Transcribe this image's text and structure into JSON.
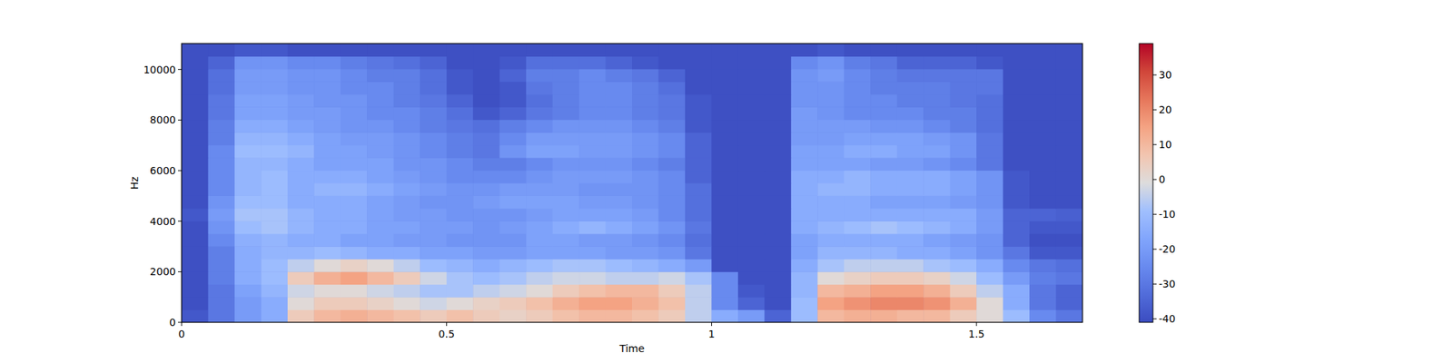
{
  "chart_data": {
    "type": "heatmap",
    "x_label": "Time",
    "y_label": "Hz",
    "xlim": [
      0,
      1.7
    ],
    "ylim": [
      0,
      11025
    ],
    "xticks": [
      0,
      0.5,
      1,
      1.5
    ],
    "yticks": [
      0,
      2000,
      4000,
      6000,
      8000,
      10000
    ],
    "color_range": [
      -41,
      39
    ],
    "color_ticks": [
      -40,
      -30,
      -20,
      -10,
      0,
      10,
      20,
      30
    ],
    "cells": [
      [
        -38,
        -30,
        -20,
        -15,
        5,
        10,
        12,
        10,
        8,
        5,
        8,
        5,
        3,
        5,
        8,
        10,
        10,
        8,
        5,
        -5,
        -15,
        -20,
        -35,
        -10,
        10,
        12,
        12,
        10,
        10,
        5,
        0,
        -10,
        -25,
        -30
      ],
      [
        -40,
        -30,
        -20,
        -15,
        0,
        5,
        5,
        3,
        0,
        -3,
        0,
        3,
        5,
        8,
        12,
        15,
        15,
        12,
        8,
        -5,
        -25,
        -35,
        -40,
        -10,
        15,
        18,
        20,
        20,
        18,
        12,
        0,
        -15,
        -30,
        -35
      ],
      [
        -40,
        -30,
        -18,
        -12,
        -3,
        0,
        0,
        -3,
        -5,
        -8,
        -8,
        -5,
        -3,
        0,
        5,
        8,
        10,
        10,
        5,
        -5,
        -25,
        -38,
        -40,
        -12,
        10,
        12,
        15,
        15,
        12,
        5,
        -5,
        -15,
        -30,
        -35
      ],
      [
        -40,
        -28,
        -15,
        -10,
        5,
        12,
        15,
        10,
        5,
        -3,
        -8,
        -10,
        -8,
        -5,
        -3,
        -3,
        -5,
        -5,
        -3,
        -8,
        -25,
        -40,
        -40,
        -12,
        0,
        3,
        5,
        5,
        3,
        -3,
        -10,
        -20,
        -28,
        -30
      ],
      [
        -40,
        -28,
        -15,
        -10,
        -5,
        0,
        3,
        0,
        -5,
        -10,
        -12,
        -15,
        -12,
        -10,
        -8,
        -8,
        -10,
        -12,
        -15,
        -20,
        -40,
        -40,
        -40,
        -15,
        -8,
        -5,
        -5,
        -5,
        -8,
        -10,
        -15,
        -25,
        -30,
        -32
      ],
      [
        -40,
        -28,
        -15,
        -12,
        -12,
        -10,
        -12,
        -15,
        -15,
        -18,
        -18,
        -20,
        -20,
        -18,
        -18,
        -18,
        -20,
        -20,
        -22,
        -30,
        -40,
        -40,
        -40,
        -18,
        -12,
        -12,
        -12,
        -15,
        -15,
        -18,
        -22,
        -30,
        -38,
        -38
      ],
      [
        -40,
        -25,
        -14,
        -12,
        -15,
        -15,
        -18,
        -18,
        -20,
        -20,
        -22,
        -22,
        -22,
        -18,
        -18,
        -20,
        -20,
        -22,
        -25,
        -32,
        -40,
        -40,
        -40,
        -18,
        -15,
        -15,
        -15,
        -15,
        -18,
        -20,
        -22,
        -35,
        -40,
        -40
      ],
      [
        -40,
        -22,
        -10,
        -8,
        -12,
        -15,
        -15,
        -18,
        -18,
        -20,
        -20,
        -22,
        -20,
        -18,
        -15,
        -12,
        -15,
        -18,
        -22,
        -30,
        -40,
        -40,
        -40,
        -15,
        -12,
        -10,
        -8,
        -10,
        -12,
        -15,
        -20,
        -35,
        -38,
        -38
      ],
      [
        -38,
        -20,
        -8,
        -8,
        -12,
        -15,
        -15,
        -18,
        -20,
        -20,
        -22,
        -22,
        -22,
        -20,
        -18,
        -18,
        -18,
        -20,
        -25,
        -32,
        -40,
        -40,
        -40,
        -15,
        -15,
        -15,
        -15,
        -15,
        -15,
        -15,
        -20,
        -35,
        -35,
        -36
      ],
      [
        -40,
        -22,
        -10,
        -10,
        -15,
        -15,
        -15,
        -18,
        -20,
        -22,
        -22,
        -20,
        -18,
        -18,
        -18,
        -20,
        -20,
        -22,
        -25,
        -32,
        -40,
        -40,
        -40,
        -15,
        -15,
        -15,
        -18,
        -18,
        -18,
        -20,
        -22,
        -38,
        -40,
        -40
      ],
      [
        -40,
        -25,
        -12,
        -10,
        -15,
        -12,
        -12,
        -15,
        -18,
        -20,
        -22,
        -22,
        -20,
        -20,
        -20,
        -22,
        -22,
        -22,
        -25,
        -32,
        -40,
        -40,
        -40,
        -15,
        -12,
        -12,
        -15,
        -15,
        -15,
        -18,
        -22,
        -38,
        -40,
        -40
      ],
      [
        -40,
        -25,
        -12,
        -10,
        -15,
        -15,
        -15,
        -18,
        -20,
        -22,
        -25,
        -25,
        -25,
        -22,
        -20,
        -20,
        -20,
        -22,
        -25,
        -35,
        -40,
        -40,
        -40,
        -15,
        -15,
        -12,
        -15,
        -15,
        -15,
        -18,
        -22,
        -38,
        -40,
        -40
      ],
      [
        -40,
        -25,
        -12,
        -12,
        -15,
        -18,
        -18,
        -18,
        -22,
        -22,
        -25,
        -28,
        -28,
        -25,
        -22,
        -22,
        -22,
        -25,
        -28,
        -35,
        -40,
        -40,
        -40,
        -18,
        -18,
        -18,
        -20,
        -20,
        -22,
        -25,
        -30,
        -40,
        -40,
        -40
      ],
      [
        -40,
        -25,
        -10,
        -10,
        -12,
        -18,
        -18,
        -20,
        -22,
        -25,
        -28,
        -30,
        -22,
        -18,
        -18,
        -20,
        -20,
        -22,
        -25,
        -35,
        -40,
        -40,
        -40,
        -18,
        -18,
        -15,
        -15,
        -18,
        -18,
        -22,
        -30,
        -40,
        -40,
        -40
      ],
      [
        -40,
        -28,
        -12,
        -12,
        -15,
        -18,
        -20,
        -20,
        -22,
        -25,
        -28,
        -30,
        -25,
        -20,
        -20,
        -20,
        -20,
        -22,
        -25,
        -35,
        -40,
        -40,
        -40,
        -20,
        -20,
        -18,
        -18,
        -18,
        -20,
        -22,
        -30,
        -40,
        -40,
        -40
      ],
      [
        -40,
        -28,
        -15,
        -15,
        -18,
        -20,
        -22,
        -22,
        -25,
        -28,
        -30,
        -32,
        -28,
        -25,
        -22,
        -22,
        -22,
        -25,
        -28,
        -38,
        -40,
        -40,
        -40,
        -20,
        -20,
        -20,
        -22,
        -22,
        -25,
        -28,
        -32,
        -40,
        -40,
        -40
      ],
      [
        -40,
        -30,
        -18,
        -18,
        -20,
        -20,
        -22,
        -25,
        -25,
        -28,
        -32,
        -38,
        -35,
        -30,
        -28,
        -25,
        -25,
        -28,
        -30,
        -38,
        -40,
        -40,
        -40,
        -20,
        -22,
        -25,
        -25,
        -25,
        -28,
        -28,
        -32,
        -40,
        -40,
        -40
      ],
      [
        -40,
        -30,
        -18,
        -18,
        -20,
        -22,
        -22,
        -25,
        -28,
        -30,
        -35,
        -40,
        -38,
        -32,
        -28,
        -25,
        -25,
        -28,
        -30,
        -38,
        -40,
        -40,
        -40,
        -22,
        -22,
        -25,
        -25,
        -28,
        -28,
        -30,
        -32,
        -40,
        -40,
        -40
      ],
      [
        -40,
        -32,
        -20,
        -20,
        -22,
        -22,
        -25,
        -25,
        -28,
        -32,
        -38,
        -40,
        -38,
        -30,
        -28,
        -25,
        -25,
        -28,
        -32,
        -40,
        -40,
        -40,
        -40,
        -22,
        -22,
        -25,
        -28,
        -28,
        -28,
        -30,
        -30,
        -40,
        -40,
        -40
      ],
      [
        -40,
        -32,
        -20,
        -20,
        -22,
        -22,
        -25,
        -28,
        -28,
        -32,
        -38,
        -40,
        -35,
        -28,
        -28,
        -25,
        -28,
        -30,
        -35,
        -40,
        -40,
        -40,
        -40,
        -22,
        -20,
        -25,
        -28,
        -30,
        -30,
        -30,
        -30,
        -40,
        -40,
        -40
      ],
      [
        -40,
        -35,
        -22,
        -22,
        -25,
        -25,
        -28,
        -30,
        -32,
        -35,
        -40,
        -40,
        -38,
        -32,
        -32,
        -32,
        -35,
        -38,
        -40,
        -40,
        -40,
        -40,
        -40,
        -25,
        -22,
        -28,
        -30,
        -35,
        -35,
        -35,
        -38,
        -40,
        -40,
        -40
      ],
      [
        -40,
        -40,
        -38,
        -38,
        -40,
        -40,
        -40,
        -40,
        -40,
        -40,
        -40,
        -40,
        -40,
        -40,
        -40,
        -40,
        -40,
        -40,
        -40,
        -40,
        -40,
        -40,
        -40,
        -40,
        -38,
        -40,
        -40,
        -40,
        -40,
        -40,
        -40,
        -40,
        -40,
        -40
      ]
    ]
  }
}
